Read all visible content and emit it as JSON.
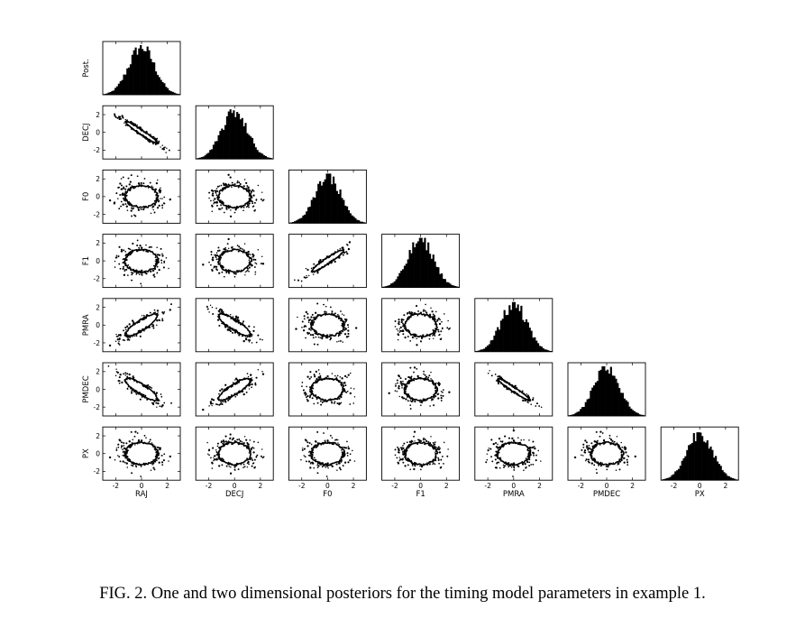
{
  "figure": {
    "parameters": [
      "RAJ",
      "DECJ",
      "F0",
      "F1",
      "PMRA",
      "PMDEC",
      "PX"
    ],
    "diag_ylabel": "Post.",
    "ticks": [
      "-2",
      "0",
      "2"
    ],
    "caption": "FIG. 2. One and two dimensional posteriors for the timing model parameters in example 1."
  },
  "chart_data": {
    "type": "corner",
    "title": "",
    "parameters": [
      "RAJ",
      "DECJ",
      "F0",
      "F1",
      "PMRA",
      "PMDEC",
      "PX"
    ],
    "diagonal": "histogram",
    "diagonal_ylabel": "Post.",
    "off_diagonal": "contours",
    "axis_range": [
      -3,
      3
    ],
    "tick_values": [
      -2,
      0,
      2
    ],
    "correlations": [
      {
        "x": "RAJ",
        "y": "DECJ",
        "rho": -0.97
      },
      {
        "x": "RAJ",
        "y": "F0",
        "rho": 0.0
      },
      {
        "x": "RAJ",
        "y": "F1",
        "rho": 0.0
      },
      {
        "x": "RAJ",
        "y": "PMRA",
        "rho": 0.85
      },
      {
        "x": "RAJ",
        "y": "PMDEC",
        "rho": -0.85
      },
      {
        "x": "RAJ",
        "y": "PX",
        "rho": 0.0
      },
      {
        "x": "DECJ",
        "y": "F0",
        "rho": 0.0
      },
      {
        "x": "DECJ",
        "y": "F1",
        "rho": 0.0
      },
      {
        "x": "DECJ",
        "y": "PMRA",
        "rho": -0.85
      },
      {
        "x": "DECJ",
        "y": "PMDEC",
        "rho": 0.85
      },
      {
        "x": "DECJ",
        "y": "PX",
        "rho": 0.0
      },
      {
        "x": "F0",
        "y": "F1",
        "rho": 0.95
      },
      {
        "x": "F0",
        "y": "PMRA",
        "rho": 0.0
      },
      {
        "x": "F0",
        "y": "PMDEC",
        "rho": 0.0
      },
      {
        "x": "F0",
        "y": "PX",
        "rho": 0.0
      },
      {
        "x": "F1",
        "y": "PMRA",
        "rho": 0.0
      },
      {
        "x": "F1",
        "y": "PMDEC",
        "rho": 0.0
      },
      {
        "x": "F1",
        "y": "PX",
        "rho": 0.0
      },
      {
        "x": "PMRA",
        "y": "PMDEC",
        "rho": -0.97
      },
      {
        "x": "PMRA",
        "y": "PX",
        "rho": 0.0
      },
      {
        "x": "PMDEC",
        "y": "PX",
        "rho": 0.0
      }
    ]
  }
}
